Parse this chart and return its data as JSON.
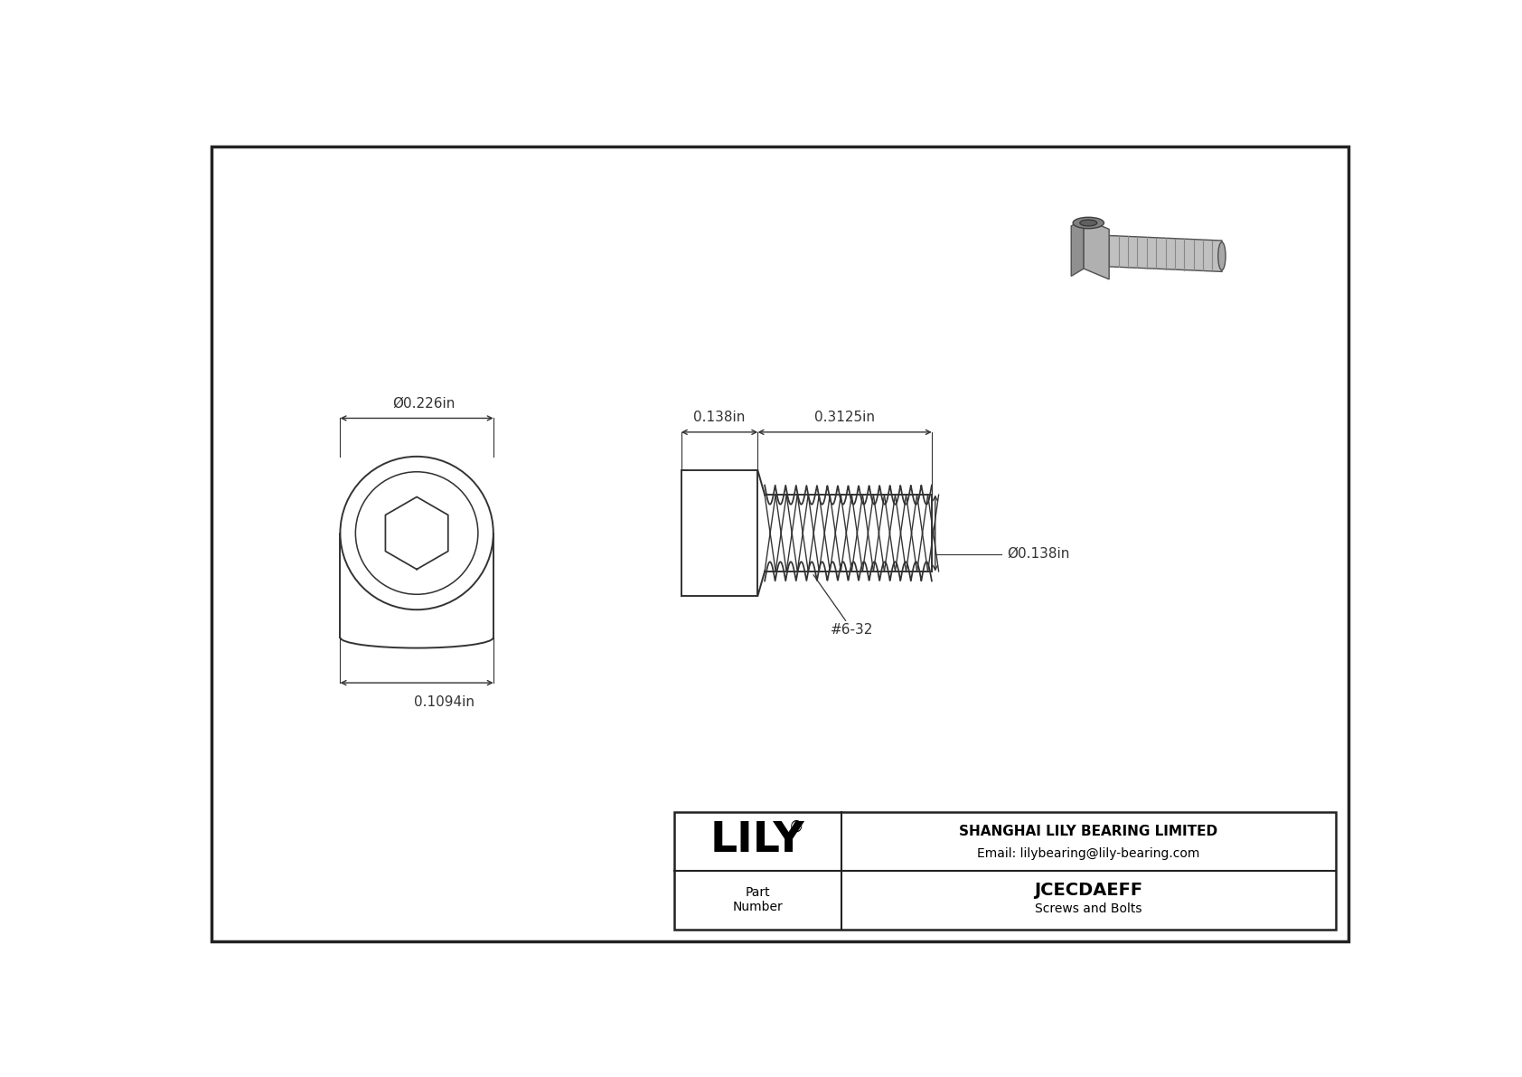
{
  "bg_color": "#ffffff",
  "border_color": "#333333",
  "line_color": "#333333",
  "dim_color": "#333333",
  "company_name": "SHANGHAI LILY BEARING LIMITED",
  "company_email": "Email: lilybearing@lily-bearing.com",
  "part_number": "JCECDAEFF",
  "part_category": "Screws and Bolts",
  "part_label": "Part\nNumber",
  "lily_logo": "LILY",
  "dim_head_diameter": "Ø0.226in",
  "dim_head_length": "0.1094in",
  "dim_body_length": "0.138in",
  "dim_thread_length": "0.3125in",
  "dim_thread_diameter": "Ø0.138in",
  "thread_label": "#6-32",
  "photo_screw_color_head": "#909090",
  "photo_screw_color_thread": "#b0b0b0",
  "photo_screw_color_dark": "#505050",
  "photo_screw_color_light": "#d0d0d0"
}
